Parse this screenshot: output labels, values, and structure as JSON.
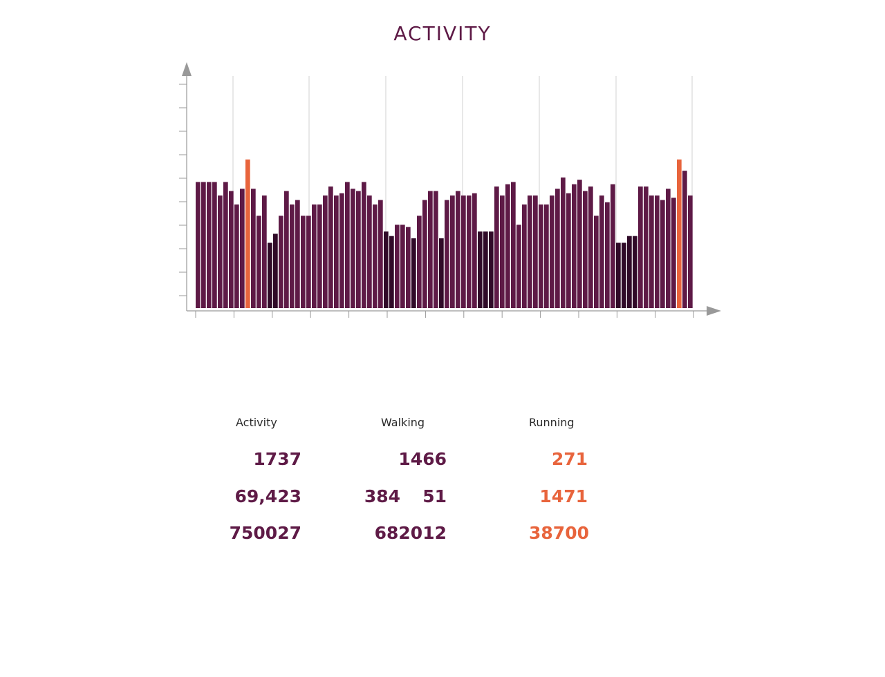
{
  "title": "ACTIVITY",
  "colors": {
    "bar": "#5e1a46",
    "bar_low": "#300a28",
    "highlight": "#e8643c",
    "axis": "#999999",
    "title": "#5e1a46"
  },
  "chart_data": {
    "type": "bar",
    "title": "ACTIVITY",
    "xlabel": "",
    "ylabel": "",
    "ylim": [
      0,
      10
    ],
    "grid": "vertical",
    "values": [
      5.6,
      5.6,
      5.6,
      5.6,
      5.0,
      5.6,
      5.2,
      4.6,
      5.3,
      6.6,
      5.3,
      4.1,
      5.0,
      2.9,
      3.3,
      4.1,
      5.2,
      4.6,
      4.8,
      4.1,
      4.1,
      4.6,
      4.6,
      5.0,
      5.4,
      5.0,
      5.1,
      5.6,
      5.3,
      5.2,
      5.6,
      5.0,
      4.6,
      4.8,
      3.4,
      3.2,
      3.7,
      3.7,
      3.6,
      3.1,
      4.1,
      4.8,
      5.2,
      5.2,
      3.1,
      4.8,
      5.0,
      5.2,
      5.0,
      5.0,
      5.1,
      3.4,
      3.4,
      3.4,
      5.4,
      5.0,
      5.5,
      5.6,
      3.7,
      4.6,
      5.0,
      5.0,
      4.6,
      4.6,
      5.0,
      5.3,
      5.8,
      5.1,
      5.5,
      5.7,
      5.2,
      5.4,
      4.1,
      5.0,
      4.7,
      5.5,
      2.9,
      2.9,
      3.2,
      3.2,
      5.4,
      5.4,
      5.0,
      5.0,
      4.8,
      5.3,
      4.9,
      6.6,
      6.1,
      5.0
    ],
    "highlight_bars": [
      9,
      87
    ],
    "low_threshold": 3.5
  },
  "stats": {
    "headers": [
      "Activity",
      "Walking",
      "Running"
    ],
    "rows": [
      {
        "activity": "1737",
        "walking": [
          "1466"
        ],
        "running": "271"
      },
      {
        "activity": "69,423",
        "walking": [
          "384",
          "51"
        ],
        "running": "1471"
      },
      {
        "activity": "750027",
        "walking": [
          "682012"
        ],
        "running": "38700"
      }
    ]
  }
}
